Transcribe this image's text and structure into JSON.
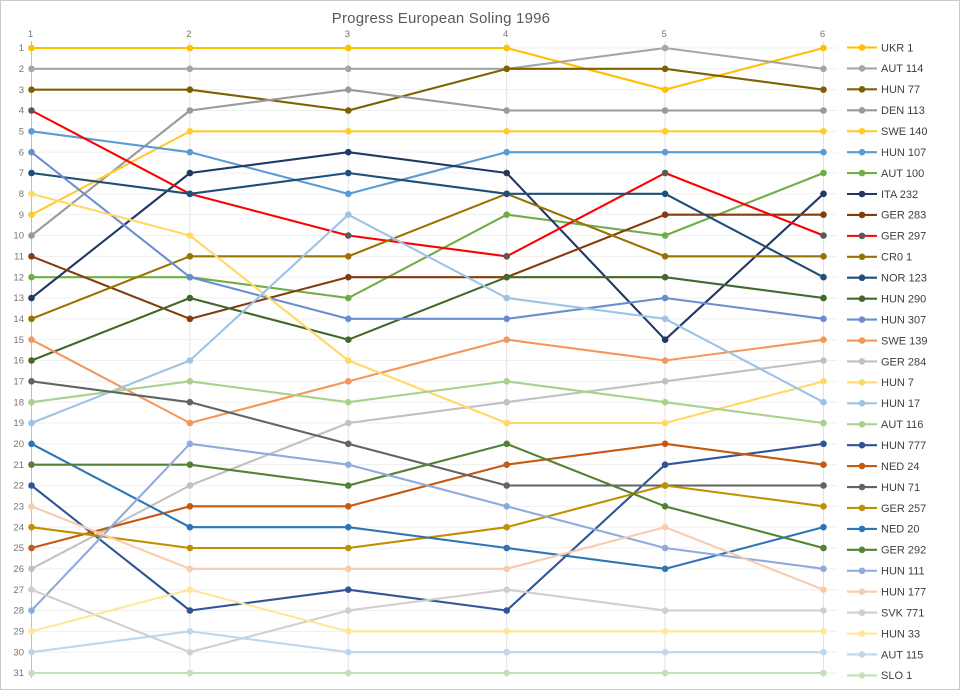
{
  "chart_data": {
    "type": "line",
    "subtype": "bump-rank-progression",
    "title": "Progress European Soling 1996",
    "xlabel": "",
    "ylabel": "",
    "x_axis_position": "top",
    "y_axis_inverted": true,
    "x_ticks": [
      "1",
      "2",
      "3",
      "4",
      "5",
      "6"
    ],
    "y_ticks": [
      "1",
      "2",
      "3",
      "4",
      "5",
      "6",
      "7",
      "8",
      "9",
      "10",
      "11",
      "12",
      "13",
      "14",
      "15",
      "16",
      "17",
      "18",
      "19",
      "20",
      "21",
      "22",
      "23",
      "24",
      "25",
      "26",
      "27",
      "28",
      "29",
      "30",
      "31"
    ],
    "ylim": [
      1,
      31
    ],
    "grid": "both",
    "legend_position": "right",
    "grid_color_h": "#efefef",
    "grid_color_v": "#e2e2e2",
    "axis_color": "#bfbfbf",
    "tick_color": "#757575",
    "legend_text_color": "#3f3f3f",
    "title_color": "#595959",
    "categories": [
      1,
      2,
      3,
      4,
      5,
      6
    ],
    "series": [
      {
        "name": "UKR 1",
        "color": "#FFC000",
        "values": [
          1,
          1,
          1,
          1,
          3,
          1
        ]
      },
      {
        "name": "AUT 114",
        "color": "#A6A6A6",
        "values": [
          2,
          2,
          2,
          2,
          1,
          2
        ]
      },
      {
        "name": "HUN 77",
        "color": "#7F6000",
        "values": [
          3,
          3,
          4,
          2,
          2,
          3
        ]
      },
      {
        "name": "DEN 113",
        "color": "#9A9A9A",
        "values": [
          10,
          4,
          3,
          4,
          4,
          4
        ]
      },
      {
        "name": "SWE 140",
        "color": "#FFCC2E",
        "values": [
          9,
          5,
          5,
          5,
          5,
          5
        ]
      },
      {
        "name": "HUN 107",
        "color": "#5B9BD5",
        "values": [
          5,
          6,
          8,
          6,
          6,
          6
        ]
      },
      {
        "name": "AUT 100",
        "color": "#70AD47",
        "values": [
          12,
          12,
          13,
          9,
          10,
          7
        ]
      },
      {
        "name": "ITA 232",
        "color": "#203864",
        "values": [
          13,
          7,
          6,
          7,
          15,
          8
        ]
      },
      {
        "name": "GER 283",
        "color": "#843C0C",
        "values": [
          11,
          14,
          12,
          12,
          9,
          9
        ]
      },
      {
        "name": "GER 297",
        "color": "#FF0000",
        "marker_color": "#595959",
        "values": [
          4,
          8,
          10,
          11,
          7,
          10
        ]
      },
      {
        "name": "CR0 1",
        "color": "#997300",
        "values": [
          14,
          11,
          11,
          8,
          11,
          11
        ]
      },
      {
        "name": "NOR 123",
        "color": "#1F4E79",
        "values": [
          7,
          8,
          7,
          8,
          8,
          12
        ]
      },
      {
        "name": "HUN 290",
        "color": "#43682B",
        "values": [
          16,
          13,
          15,
          12,
          12,
          13
        ]
      },
      {
        "name": "HUN 307",
        "color": "#698ED0",
        "values": [
          6,
          12,
          14,
          14,
          13,
          14
        ]
      },
      {
        "name": "SWE 139",
        "color": "#F4975A",
        "values": [
          15,
          19,
          17,
          15,
          16,
          15
        ]
      },
      {
        "name": "GER 284",
        "color": "#C1C1C1",
        "values": [
          26,
          22,
          19,
          18,
          17,
          16
        ]
      },
      {
        "name": "HUN 7",
        "color": "#FFD966",
        "values": [
          8,
          10,
          16,
          19,
          19,
          17
        ]
      },
      {
        "name": "HUN 17",
        "color": "#9DC3E6",
        "values": [
          19,
          16,
          9,
          13,
          14,
          18
        ]
      },
      {
        "name": "AUT 116",
        "color": "#A9D18E",
        "values": [
          18,
          17,
          18,
          17,
          18,
          19
        ]
      },
      {
        "name": "HUN 777",
        "color": "#2F5597",
        "values": [
          22,
          28,
          27,
          28,
          21,
          20
        ]
      },
      {
        "name": "NED 24",
        "color": "#C55A11",
        "values": [
          25,
          23,
          23,
          21,
          20,
          21
        ]
      },
      {
        "name": "HUN 71",
        "color": "#636363",
        "values": [
          17,
          18,
          20,
          22,
          22,
          22
        ]
      },
      {
        "name": "GER 257",
        "color": "#BF9000",
        "values": [
          24,
          25,
          25,
          24,
          22,
          23
        ]
      },
      {
        "name": "NED 20",
        "color": "#2E75B6",
        "values": [
          20,
          24,
          24,
          25,
          26,
          24
        ]
      },
      {
        "name": "GER 292",
        "color": "#538135",
        "values": [
          21,
          21,
          22,
          20,
          23,
          25
        ]
      },
      {
        "name": "HUN 111",
        "color": "#8FAADC",
        "values": [
          28,
          20,
          21,
          23,
          25,
          26
        ]
      },
      {
        "name": "HUN 177",
        "color": "#F8CBAD",
        "values": [
          23,
          26,
          26,
          26,
          24,
          27
        ]
      },
      {
        "name": "SVK 771",
        "color": "#D0CECE",
        "values": [
          27,
          30,
          28,
          27,
          28,
          28
        ]
      },
      {
        "name": "HUN 33",
        "color": "#FFE699",
        "values": [
          29,
          27,
          29,
          29,
          29,
          29
        ]
      },
      {
        "name": "AUT 115",
        "color": "#BDD7EE",
        "values": [
          30,
          29,
          30,
          30,
          30,
          30
        ]
      },
      {
        "name": "SLO 1",
        "color": "#C5E0B4",
        "values": [
          31,
          31,
          31,
          31,
          31,
          31
        ]
      }
    ]
  }
}
